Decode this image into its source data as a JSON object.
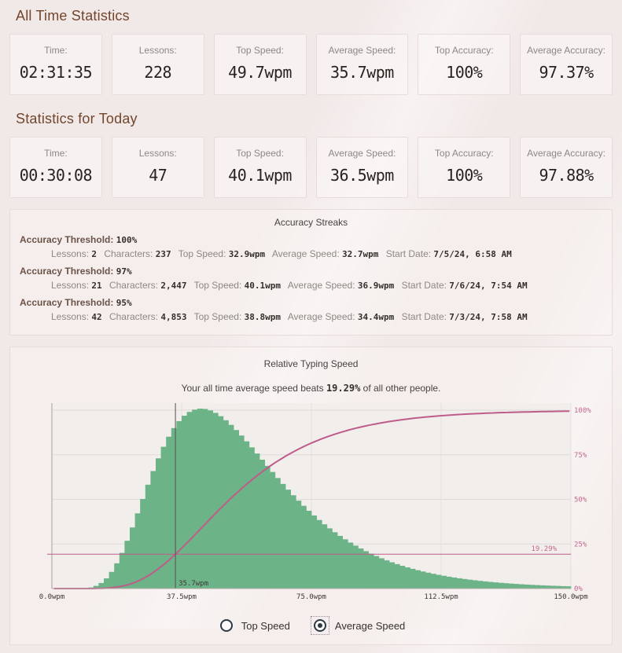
{
  "all_time": {
    "title": "All Time Statistics",
    "cards": [
      {
        "label": "Time:",
        "value": "02:31:35"
      },
      {
        "label": "Lessons:",
        "value": "228"
      },
      {
        "label": "Top Speed:",
        "value": "49.7wpm"
      },
      {
        "label": "Average Speed:",
        "value": "35.7wpm"
      },
      {
        "label": "Top Accuracy:",
        "value": "100%"
      },
      {
        "label": "Average Accuracy:",
        "value": "97.37%"
      }
    ]
  },
  "today": {
    "title": "Statistics for Today",
    "cards": [
      {
        "label": "Time:",
        "value": "00:30:08"
      },
      {
        "label": "Lessons:",
        "value": "47"
      },
      {
        "label": "Top Speed:",
        "value": "40.1wpm"
      },
      {
        "label": "Average Speed:",
        "value": "36.5wpm"
      },
      {
        "label": "Top Accuracy:",
        "value": "100%"
      },
      {
        "label": "Average Accuracy:",
        "value": "97.88%"
      }
    ]
  },
  "streaks": {
    "title": "Accuracy Streaks",
    "threshold_label": "Accuracy Threshold:",
    "items": [
      {
        "threshold": "100%",
        "fields": [
          {
            "label": "Lessons:",
            "value": "2"
          },
          {
            "label": "Characters:",
            "value": "237"
          },
          {
            "label": "Top Speed:",
            "value": "32.9wpm"
          },
          {
            "label": "Average Speed:",
            "value": "32.7wpm"
          },
          {
            "label": "Start Date:",
            "value": "7/5/24, 6:58 AM"
          }
        ]
      },
      {
        "threshold": "97%",
        "fields": [
          {
            "label": "Lessons:",
            "value": "21"
          },
          {
            "label": "Characters:",
            "value": "2,447"
          },
          {
            "label": "Top Speed:",
            "value": "40.1wpm"
          },
          {
            "label": "Average Speed:",
            "value": "36.9wpm"
          },
          {
            "label": "Start Date:",
            "value": "7/6/24, 7:54 AM"
          }
        ]
      },
      {
        "threshold": "95%",
        "fields": [
          {
            "label": "Lessons:",
            "value": "42"
          },
          {
            "label": "Characters:",
            "value": "4,853"
          },
          {
            "label": "Top Speed:",
            "value": "38.8wpm"
          },
          {
            "label": "Average Speed:",
            "value": "34.4wpm"
          },
          {
            "label": "Start Date:",
            "value": "7/3/24, 7:58 AM"
          }
        ]
      }
    ]
  },
  "chart": {
    "title": "Relative Typing Speed",
    "subtitle_prefix": "Your all time average speed beats ",
    "subtitle_value": "19.29%",
    "subtitle_suffix": " of all other people."
  },
  "chart_data": {
    "type": "area",
    "title": "Relative Typing Speed",
    "x_ticks": [
      "0.0wpm",
      "37.5wpm",
      "75.0wpm",
      "112.5wpm",
      "150.0wpm"
    ],
    "x_tick_values": [
      0,
      37.5,
      75,
      112.5,
      150
    ],
    "y_right_ticks": [
      "100%",
      "75%",
      "50%",
      "25%",
      "0%"
    ],
    "y_right_tick_values": [
      100,
      75,
      50,
      25,
      0
    ],
    "xlim": [
      0,
      150
    ],
    "ylim_pct": [
      0,
      100
    ],
    "grid": true,
    "legend_position": "none",
    "series": [
      {
        "name": "population-speed-distribution",
        "style": "area-histogram",
        "color": "#6cb388"
      },
      {
        "name": "cumulative-percent-curve",
        "style": "line",
        "color": "#bf5c89"
      }
    ],
    "distribution": {
      "type": "lognormal",
      "mu": 3.94,
      "sigma": 0.42
    },
    "bar_step_wpm": 1.5,
    "marker": {
      "wpm": 35.7,
      "label": "35.7wpm"
    },
    "percentile_line": {
      "pct": 19.29,
      "label": "19.29%"
    },
    "axis_label_color": "#3a3632",
    "right_label_color": "#c4688f",
    "marker_color": "#56514d",
    "grid_color": "#dedad8",
    "plot_bg": "#f1eeec"
  },
  "controls": {
    "options": [
      {
        "label": "Top Speed",
        "selected": false
      },
      {
        "label": "Average Speed",
        "selected": true
      }
    ]
  },
  "colors": {
    "heading": "#73462b",
    "green": "#6cb388",
    "pink": "#bf5c89",
    "radio": "#2d3a46"
  }
}
